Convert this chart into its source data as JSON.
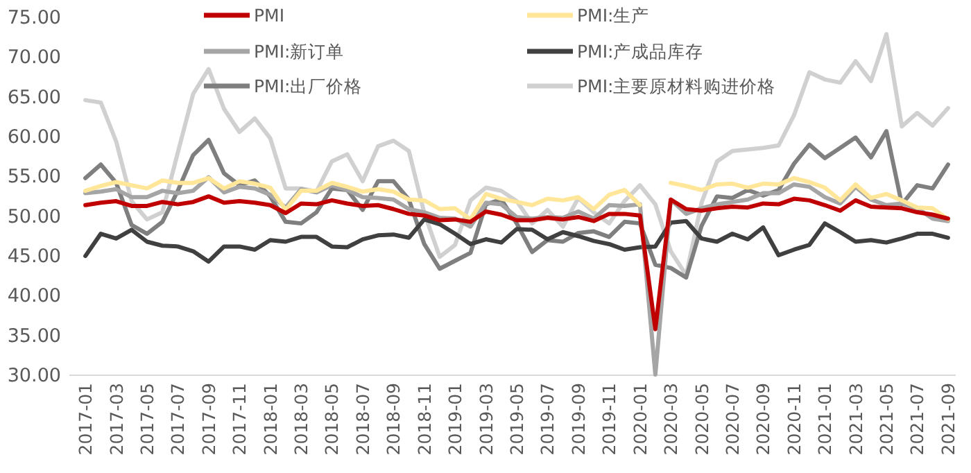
{
  "chart_data": {
    "type": "line",
    "categories": [
      "2017-01",
      null,
      "2017-03",
      null,
      "2017-05",
      null,
      "2017-07",
      null,
      "2017-09",
      null,
      "2017-11",
      null,
      "2018-01",
      null,
      "2018-03",
      null,
      "2018-05",
      null,
      "2018-07",
      null,
      "2018-09",
      null,
      "2018-11",
      null,
      "2019-01",
      null,
      "2019-03",
      null,
      "2019-05",
      null,
      "2019-07",
      null,
      "2019-09",
      null,
      "2019-11",
      null,
      "2020-01",
      null,
      "2020-03",
      null,
      "2020-05",
      null,
      "2020-07",
      null,
      "2020-09",
      null,
      "2020-11",
      null,
      "2021-01",
      null,
      "2021-03",
      null,
      "2021-05",
      null,
      "2021-07",
      null,
      "2021-09"
    ],
    "ylim": [
      30,
      75
    ],
    "yticks": [
      {
        "value": 30,
        "label": "30.00"
      },
      {
        "value": 35,
        "label": "35.00"
      },
      {
        "value": 40,
        "label": "40.00"
      },
      {
        "value": 45,
        "label": "45.00"
      },
      {
        "value": 50,
        "label": "50.00"
      },
      {
        "value": 55,
        "label": "55.00"
      },
      {
        "value": 60,
        "label": "60.00"
      },
      {
        "value": 65,
        "label": "65.00"
      },
      {
        "value": 70,
        "label": "70.00"
      },
      {
        "value": 75,
        "label": "75.00"
      }
    ],
    "legend": "top",
    "marker": "none",
    "line_style": "solid",
    "series": [
      {
        "name": "PMI",
        "color": "#c00000",
        "values": [
          51.3,
          51.6,
          51.8,
          51.2,
          51.2,
          51.7,
          51.4,
          51.7,
          52.4,
          51.6,
          51.8,
          51.6,
          51.3,
          50.3,
          51.5,
          51.4,
          51.9,
          51.5,
          51.2,
          51.3,
          50.8,
          50.2,
          50.0,
          49.4,
          49.5,
          49.2,
          50.5,
          50.1,
          49.4,
          49.4,
          49.7,
          49.5,
          49.8,
          49.3,
          50.2,
          50.2,
          50.0,
          35.7,
          52.0,
          50.8,
          50.6,
          50.9,
          51.1,
          51.0,
          51.5,
          51.4,
          52.1,
          51.9,
          51.3,
          50.6,
          51.9,
          51.1,
          51.0,
          50.9,
          50.4,
          50.1,
          49.6
        ]
      },
      {
        "name": "PMI:生产",
        "color": "#ffe699",
        "values": [
          53.1,
          53.7,
          54.2,
          53.8,
          53.4,
          54.4,
          54.1,
          54.1,
          54.7,
          53.4,
          54.3,
          54.0,
          53.5,
          50.7,
          53.1,
          53.1,
          54.1,
          53.6,
          53.0,
          53.3,
          53.0,
          52.0,
          51.9,
          50.8,
          50.9,
          49.5,
          52.7,
          52.1,
          51.7,
          51.3,
          52.1,
          51.9,
          52.3,
          50.8,
          52.6,
          53.2,
          51.3,
          null,
          54.1,
          53.7,
          53.2,
          53.9,
          54.0,
          53.5,
          54.0,
          53.9,
          54.7,
          54.2,
          53.5,
          51.9,
          53.9,
          52.2,
          52.7,
          51.9,
          51.0,
          50.9,
          49.5
        ]
      },
      {
        "name": "PMI:新订单",
        "color": "#a5a5a5",
        "values": [
          52.8,
          53.0,
          53.3,
          52.3,
          52.3,
          53.1,
          52.8,
          53.1,
          54.8,
          52.9,
          53.6,
          53.4,
          52.6,
          51.0,
          53.3,
          52.9,
          53.8,
          53.2,
          52.3,
          52.2,
          52.0,
          50.8,
          50.4,
          49.7,
          49.6,
          48.6,
          51.6,
          51.4,
          49.8,
          49.6,
          49.8,
          49.7,
          50.5,
          49.6,
          51.3,
          51.2,
          51.4,
          30.0,
          52.0,
          50.2,
          50.9,
          51.4,
          51.7,
          52.0,
          52.8,
          52.8,
          53.9,
          53.6,
          52.3,
          51.5,
          53.6,
          52.0,
          51.3,
          51.5,
          50.9,
          49.6,
          49.3
        ]
      },
      {
        "name": "PMI:产成品库存",
        "color": "#404040",
        "values": [
          44.9,
          47.7,
          47.1,
          48.2,
          46.7,
          46.2,
          46.1,
          45.5,
          44.2,
          46.1,
          46.1,
          45.7,
          46.9,
          46.7,
          47.3,
          47.3,
          46.1,
          46.0,
          47.0,
          47.5,
          47.6,
          47.2,
          49.5,
          48.9,
          47.7,
          46.4,
          47.0,
          46.6,
          48.3,
          48.2,
          47.0,
          47.9,
          47.4,
          46.8,
          46.4,
          45.7,
          46.0,
          46.1,
          49.1,
          49.3,
          47.1,
          46.7,
          47.7,
          47.0,
          48.5,
          45.0,
          45.7,
          46.3,
          49.0,
          47.9,
          46.7,
          46.9,
          46.6,
          47.1,
          47.7,
          47.7,
          47.2
        ]
      },
      {
        "name": "PMI:出厂价格",
        "color": "#7f7f7f",
        "values": [
          54.7,
          56.4,
          54.1,
          48.8,
          47.7,
          49.2,
          53.1,
          57.6,
          59.5,
          55.3,
          53.8,
          54.4,
          52.4,
          49.2,
          49.0,
          50.4,
          53.4,
          53.2,
          50.7,
          54.3,
          54.3,
          52.0,
          46.4,
          43.3,
          44.3,
          45.3,
          51.4,
          52.0,
          49.0,
          45.4,
          46.9,
          46.7,
          47.8,
          48.0,
          47.3,
          49.2,
          49.0,
          43.8,
          43.4,
          42.2,
          48.7,
          52.4,
          52.2,
          53.2,
          52.5,
          53.2,
          56.5,
          58.9,
          57.2,
          58.5,
          59.8,
          57.3,
          60.6,
          51.4,
          53.8,
          53.4,
          56.4
        ]
      },
      {
        "name": "PMI:主要原材料购进价格",
        "color": "#d0d0d0",
        "values": [
          64.5,
          64.2,
          59.3,
          51.8,
          49.5,
          50.4,
          57.9,
          65.3,
          68.4,
          63.4,
          60.5,
          62.2,
          59.7,
          53.4,
          53.4,
          53.0,
          56.8,
          57.7,
          54.3,
          58.7,
          59.4,
          58.1,
          50.3,
          44.8,
          46.3,
          51.9,
          53.5,
          53.1,
          51.8,
          49.0,
          50.7,
          48.6,
          52.2,
          50.4,
          49.0,
          51.8,
          53.8,
          51.4,
          45.5,
          42.5,
          51.6,
          56.8,
          58.1,
          58.3,
          58.5,
          58.8,
          62.6,
          68.0,
          67.1,
          66.7,
          69.4,
          66.9,
          72.8,
          61.2,
          62.9,
          61.3,
          63.5
        ]
      }
    ]
  }
}
